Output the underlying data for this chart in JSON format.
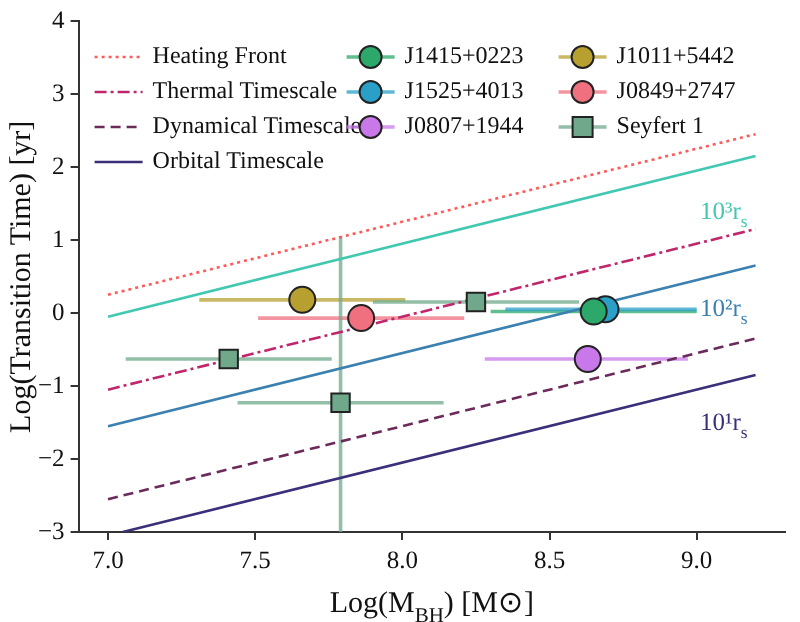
{
  "chart_data": {
    "type": "line",
    "xlabel": "Log(M$_{BH}$) [M⊙]",
    "ylabel": "Log(Transition Time) [yr]",
    "xlim": [
      6.9,
      9.3
    ],
    "ylim": [
      -3,
      4
    ],
    "xticks": [
      {
        "value": 7,
        "label": "7.0"
      },
      {
        "value": 7.5,
        "label": "7.5"
      },
      {
        "value": 8,
        "label": "8.0"
      },
      {
        "value": 8.5,
        "label": "8.5"
      },
      {
        "value": 9,
        "label": "9.0"
      }
    ],
    "yticks": [
      {
        "value": -3,
        "label": "−3"
      },
      {
        "value": -2,
        "label": "−2"
      },
      {
        "value": -1,
        "label": "−1"
      },
      0,
      1,
      2,
      3,
      4
    ],
    "grid": false,
    "legend": "top",
    "series": [
      {
        "name": "Heating Front",
        "type": "line",
        "color": "#ff5a5a",
        "line_style": "dotted",
        "marker": "none",
        "x": [
          7.0,
          9.2
        ],
        "values": [
          0.25,
          2.45
        ]
      },
      {
        "name": "Thermal Timescale",
        "type": "line",
        "color": "#c0266c",
        "line_style": "dashdot",
        "marker": "none",
        "x": [
          7.0,
          9.2
        ],
        "values": [
          -1.05,
          1.15
        ]
      },
      {
        "name": "Dynamical Timescale",
        "type": "line",
        "color": "#6b2a5a",
        "line_style": "dashed",
        "marker": "none",
        "x": [
          7.0,
          9.2
        ],
        "values": [
          -2.55,
          -0.35
        ]
      },
      {
        "name": "Orbital Timescale",
        "type": "line",
        "color": "#3b2f7a",
        "line_style": "solid",
        "marker": "none",
        "x": [
          7.05,
          9.2
        ],
        "values": [
          -3.0,
          -0.85
        ]
      },
      {
        "type": "line",
        "color": "#40c8b0",
        "line_style": "solid",
        "marker": "none",
        "x": [
          7.0,
          9.2
        ],
        "values": [
          -0.05,
          2.15
        ]
      },
      {
        "type": "line",
        "color": "#3a80b0",
        "line_style": "solid",
        "marker": "none",
        "x": [
          7.0,
          9.2
        ],
        "values": [
          -1.55,
          0.65
        ]
      },
      {
        "name": "J1415+0223",
        "type": "scatter",
        "color": "#2ca86a",
        "marker": "circle",
        "x": [
          8.65
        ],
        "values": [
          0.02
        ],
        "xerrors": [
          [
            8.3,
            9.0
          ]
        ]
      },
      {
        "name": "J1525+4013",
        "type": "scatter",
        "color": "#2aa0c8",
        "marker": "circle",
        "x": [
          8.69
        ],
        "values": [
          0.05
        ],
        "xerrors": [
          [
            8.35,
            9.0
          ]
        ],
        "errors": [
          0.1
        ]
      },
      {
        "name": "J0807+1944",
        "type": "scatter",
        "color": "#c878e8",
        "marker": "circle",
        "x": [
          8.63
        ],
        "values": [
          -0.63
        ],
        "xerrors": [
          [
            8.28,
            8.97
          ]
        ]
      },
      {
        "name": "J1011+5442",
        "type": "scatter",
        "color": "#b8a030",
        "marker": "circle",
        "x": [
          7.66
        ],
        "values": [
          0.18
        ],
        "xerrors": [
          [
            7.31,
            8.01
          ]
        ]
      },
      {
        "name": "J0849+2747",
        "type": "scatter",
        "color": "#f07080",
        "marker": "circle",
        "x": [
          7.86
        ],
        "values": [
          -0.07
        ],
        "xerrors": [
          [
            7.51,
            8.21
          ]
        ]
      },
      {
        "name": "Seyfert 1",
        "type": "scatter",
        "color": "#6fa88a",
        "marker": "square",
        "x": [
          8.25,
          7.41,
          7.79
        ],
        "values": [
          0.15,
          -0.63,
          -1.23
        ],
        "xerrors": [
          [
            7.9,
            8.6
          ],
          [
            7.06,
            7.76
          ],
          [
            7.44,
            8.14
          ]
        ],
        "errors": [
          null,
          null,
          [
            -3,
            1.05
          ]
        ]
      }
    ],
    "annotations": [
      "10³r$_{s}$",
      "10²r$_{s}$",
      "10¹r$_{s}$"
    ]
  }
}
